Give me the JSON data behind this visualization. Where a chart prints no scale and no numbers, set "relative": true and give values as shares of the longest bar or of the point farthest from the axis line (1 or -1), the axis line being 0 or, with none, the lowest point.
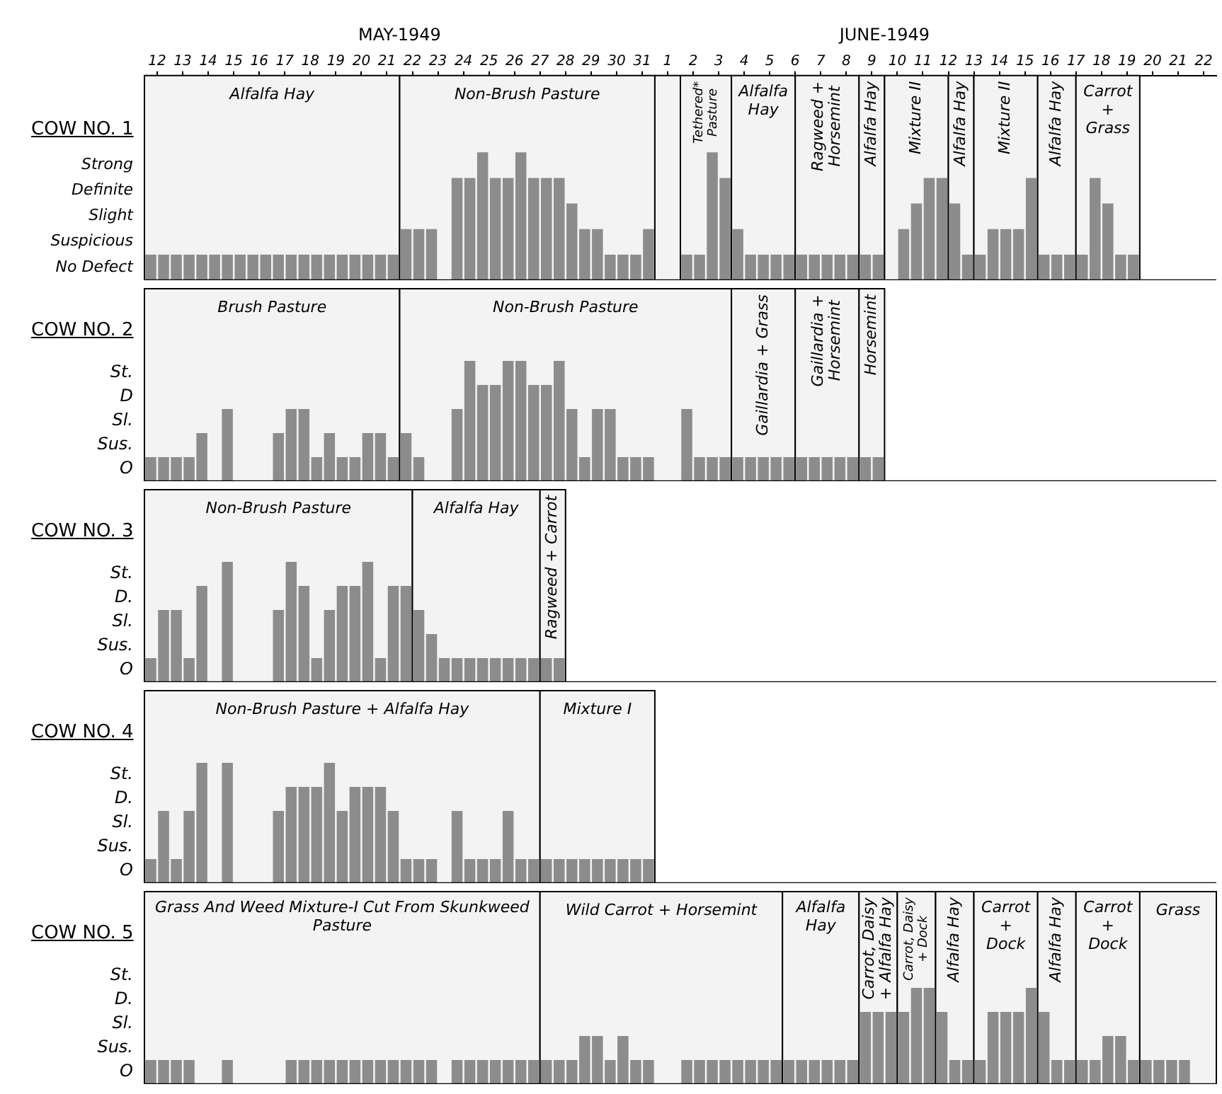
{
  "chart_data": [
    {
      "type": "bar",
      "title": "COW NO. 1",
      "relative": true,
      "color": "#8c8c8c",
      "annotations": [
        "Strong",
        "Definite",
        "Slight",
        "Suspicious",
        "No Defect"
      ],
      "x": [
        "1949-05-12T06:00",
        "1949-05-12T18:00",
        "1949-05-13T06:00",
        "1949-05-13T18:00",
        "1949-05-14T06:00",
        "1949-05-14T18:00",
        "1949-05-15T06:00",
        "1949-05-15T18:00",
        "1949-05-16T06:00",
        "1949-05-16T18:00",
        "1949-05-17T06:00",
        "1949-05-17T18:00",
        "1949-05-18T06:00",
        "1949-05-18T18:00",
        "1949-05-19T06:00",
        "1949-05-19T18:00",
        "1949-05-20T06:00",
        "1949-05-20T18:00",
        "1949-05-21T06:00",
        "1949-05-21T18:00",
        "1949-05-22T06:00",
        "1949-05-22T18:00",
        "1949-05-23T06:00",
        "1949-05-23T18:00",
        "1949-05-24T06:00",
        "1949-05-24T18:00",
        "1949-05-25T06:00",
        "1949-05-25T18:00",
        "1949-05-26T06:00",
        "1949-05-26T18:00",
        "1949-05-27T06:00",
        "1949-05-27T18:00",
        "1949-05-28T06:00",
        "1949-05-28T18:00",
        "1949-05-29T06:00",
        "1949-05-29T18:00",
        "1949-05-30T06:00",
        "1949-05-30T18:00",
        "1949-05-31T06:00",
        "1949-05-31T18:00",
        "1949-06-01T06:00",
        "1949-06-01T18:00",
        "1949-06-02T06:00",
        "1949-06-02T18:00",
        "1949-06-03T06:00",
        "1949-06-03T18:00",
        "1949-06-04T06:00",
        "1949-06-04T18:00",
        "1949-06-05T06:00",
        "1949-06-05T18:00",
        "1949-06-06T06:00",
        "1949-06-06T18:00",
        "1949-06-07T06:00",
        "1949-06-07T18:00",
        "1949-06-08T06:00",
        "1949-06-08T18:00",
        "1949-06-09T06:00",
        "1949-06-09T18:00",
        "1949-06-10T06:00",
        "1949-06-10T18:00",
        "1949-06-11T06:00",
        "1949-06-11T18:00",
        "1949-06-12T06:00",
        "1949-06-12T18:00",
        "1949-06-13T06:00",
        "1949-06-13T18:00",
        "1949-06-14T06:00",
        "1949-06-14T18:00",
        "1949-06-15T06:00",
        "1949-06-15T18:00",
        "1949-06-16T06:00",
        "1949-06-16T18:00",
        "1949-06-17T06:00",
        "1949-06-17T18:00",
        "1949-06-18T06:00",
        "1949-06-18T18:00",
        "1949-06-19T06:00",
        "1949-06-19T18:00"
      ],
      "values": [
        0.2,
        0.2,
        0.2,
        0.2,
        0.2,
        0.2,
        0.2,
        0.2,
        0.2,
        0.2,
        0.2,
        0.2,
        0.2,
        0.2,
        0.2,
        0.2,
        0.2,
        0.2,
        0.2,
        0.2,
        0.4,
        0.4,
        0.4,
        null,
        0.8,
        0.8,
        1,
        0.8,
        0.8,
        1,
        0.8,
        0.8,
        0.8,
        0.6,
        0.4,
        0.4,
        0.2,
        0.2,
        0.2,
        0.4,
        null,
        null,
        0.2,
        0.2,
        1,
        0.8,
        0.4,
        0.2,
        0.2,
        0.2,
        0.2,
        0.2,
        0.2,
        0.2,
        0.2,
        0.2,
        0.2,
        0.2,
        null,
        0.4,
        0.6,
        0.8,
        0.8,
        0.6,
        0.2,
        0.2,
        0.4,
        0.4,
        0.4,
        0.8,
        0.2,
        0.2,
        0.2,
        0.2,
        0.8,
        0.6,
        0.2,
        0.2
      ],
      "xlim": [
        "1949-05-12",
        "1949-06-23"
      ],
      "xticks": [
        {
          "value": "1949-05-12T12:00",
          "label": "12"
        },
        {
          "value": "1949-05-13T12:00",
          "label": "13"
        },
        {
          "value": "1949-05-14T12:00",
          "label": "14"
        },
        {
          "value": "1949-05-15T12:00",
          "label": "15"
        },
        {
          "value": "1949-05-16T12:00",
          "label": "16"
        },
        {
          "value": "1949-05-17T12:00",
          "label": "17"
        },
        {
          "value": "1949-05-18T12:00",
          "label": "18"
        },
        {
          "value": "1949-05-19T12:00",
          "label": "19"
        },
        {
          "value": "1949-05-20T12:00",
          "label": "20"
        },
        {
          "value": "1949-05-21T12:00",
          "label": "21"
        },
        {
          "value": "1949-05-22T12:00",
          "label": "22"
        },
        {
          "value": "1949-05-23T12:00",
          "label": "23"
        },
        {
          "value": "1949-05-24T12:00",
          "label": "24"
        },
        {
          "value": "1949-05-25T12:00",
          "label": "25"
        },
        {
          "value": "1949-05-26T12:00",
          "label": "26"
        },
        {
          "value": "1949-05-27T12:00",
          "label": "27"
        },
        {
          "value": "1949-05-28T12:00",
          "label": "28"
        },
        {
          "value": "1949-05-29T12:00",
          "label": "29"
        },
        {
          "value": "1949-05-30T12:00",
          "label": "30"
        },
        {
          "value": "1949-05-31T12:00",
          "label": "31"
        },
        {
          "value": "1949-06-01T12:00",
          "label": "1"
        },
        {
          "value": "1949-06-02T12:00",
          "label": "2"
        },
        {
          "value": "1949-06-03T12:00",
          "label": "3"
        },
        {
          "value": "1949-06-04T12:00",
          "label": "4"
        },
        {
          "value": "1949-06-05T12:00",
          "label": "5"
        },
        {
          "value": "1949-06-06T12:00",
          "label": "6"
        },
        {
          "value": "1949-06-07T12:00",
          "label": "7"
        },
        {
          "value": "1949-06-08T12:00",
          "label": "8"
        },
        {
          "value": "1949-06-09T12:00",
          "label": "9"
        },
        {
          "value": "1949-06-10T12:00",
          "label": "10"
        },
        {
          "value": "1949-06-11T12:00",
          "label": "11"
        },
        {
          "value": "1949-06-12T12:00",
          "label": "12"
        },
        {
          "value": "1949-06-13T12:00",
          "label": "13"
        },
        {
          "value": "1949-06-14T12:00",
          "label": "14"
        },
        {
          "value": "1949-06-15T12:00",
          "label": "15"
        },
        {
          "value": "1949-06-16T12:00",
          "label": "16"
        },
        {
          "value": "1949-06-17T12:00",
          "label": "17"
        },
        {
          "value": "1949-06-18T12:00",
          "label": "18"
        },
        {
          "value": "1949-06-19T12:00",
          "label": "19"
        },
        {
          "value": "1949-06-20T12:00",
          "label": "20"
        },
        {
          "value": "1949-06-21T12:00",
          "label": "21"
        },
        {
          "value": "1949-06-22T12:00",
          "label": "22"
        }
      ],
      "x2lim": [
        "1949-05-12",
        "1949-06-23"
      ],
      "x2ticks": [
        {
          "value": "1949-05-22",
          "label": "MAY-1949"
        },
        {
          "value": "1949-06-10",
          "label": "JUNE-1949"
        }
      ],
      "bands": [
        {
          "axis": "x",
          "from": "1949-05-12",
          "to": "1949-05-22",
          "label": "Alfalfa Hay",
          "color": "#f3f3f3"
        },
        {
          "axis": "x",
          "from": "1949-05-22",
          "to": "1949-06-01",
          "label": "Non-Brush Pasture",
          "color": "#f3f3f3"
        },
        {
          "axis": "x",
          "from": "1949-06-01",
          "to": "1949-06-02",
          "color": "#f3f3f3"
        },
        {
          "axis": "x",
          "from": "1949-06-02",
          "to": "1949-06-04",
          "label": "Tethered* Pasture",
          "color": "#f3f3f3"
        },
        {
          "axis": "x",
          "from": "1949-06-04",
          "to": "1949-06-06T12:00",
          "label": "Alfalfa Hay",
          "color": "#f3f3f3"
        },
        {
          "axis": "x",
          "from": "1949-06-06T12:00",
          "to": "1949-06-09",
          "label": "Ragweed + Horsemint",
          "color": "#f3f3f3"
        },
        {
          "axis": "x",
          "from": "1949-06-09",
          "to": "1949-06-10",
          "label": "Alfalfa Hay",
          "color": "#f3f3f3"
        },
        {
          "axis": "x",
          "from": "1949-06-10",
          "to": "1949-06-12T12:00",
          "label": "Mixture II",
          "color": "#f3f3f3"
        },
        {
          "axis": "x",
          "from": "1949-06-12T12:00",
          "to": "1949-06-13T12:00",
          "label": "Alfalfa Hay",
          "color": "#f3f3f3"
        },
        {
          "axis": "x",
          "from": "1949-06-13T12:00",
          "to": "1949-06-16",
          "label": "Mixture II",
          "color": "#f3f3f3"
        },
        {
          "axis": "x",
          "from": "1949-06-16",
          "to": "1949-06-17T12:00",
          "label": "Alfalfa Hay",
          "color": "#f3f3f3"
        },
        {
          "axis": "x",
          "from": "1949-06-17T12:00",
          "to": "1949-06-20",
          "label": "Carrot + Grass",
          "color": "#f3f3f3"
        }
      ]
    },
    {
      "type": "bar",
      "title": "COW NO. 2",
      "relative": true,
      "tick_labels": false,
      "color": "#8c8c8c",
      "annotations": [
        "St.",
        "D",
        "Sl.",
        "Sus.",
        "O"
      ],
      "x": [
        "1949-05-12T06:00",
        "1949-05-12T18:00",
        "1949-05-13T06:00",
        "1949-05-13T18:00",
        "1949-05-14T06:00",
        "1949-05-14T18:00",
        "1949-05-15T06:00",
        "1949-05-15T18:00",
        "1949-05-16T06:00",
        "1949-05-16T18:00",
        "1949-05-17T06:00",
        "1949-05-17T18:00",
        "1949-05-18T06:00",
        "1949-05-18T18:00",
        "1949-05-19T06:00",
        "1949-05-19T18:00",
        "1949-05-20T06:00",
        "1949-05-20T18:00",
        "1949-05-21T06:00",
        "1949-05-21T18:00",
        "1949-05-22T06:00",
        "1949-05-22T18:00",
        "1949-05-23T06:00",
        "1949-05-23T18:00",
        "1949-05-24T06:00",
        "1949-05-24T18:00",
        "1949-05-25T06:00",
        "1949-05-25T18:00",
        "1949-05-26T06:00",
        "1949-05-26T18:00",
        "1949-05-27T06:00",
        "1949-05-27T18:00",
        "1949-05-28T06:00",
        "1949-05-28T18:00",
        "1949-05-29T06:00",
        "1949-05-29T18:00",
        "1949-05-30T06:00",
        "1949-05-30T18:00",
        "1949-05-31T06:00",
        "1949-05-31T18:00",
        "1949-06-01T06:00",
        "1949-06-01T18:00",
        "1949-06-02T06:00",
        "1949-06-02T18:00",
        "1949-06-03T06:00",
        "1949-06-03T18:00",
        "1949-06-04T06:00",
        "1949-06-04T18:00",
        "1949-06-05T06:00",
        "1949-06-05T18:00",
        "1949-06-06T06:00",
        "1949-06-06T18:00",
        "1949-06-07T06:00",
        "1949-06-07T18:00",
        "1949-06-08T06:00",
        "1949-06-08T18:00",
        "1949-06-09T06:00",
        "1949-06-09T18:00"
      ],
      "values": [
        0.2,
        0.2,
        0.2,
        0.2,
        0.4,
        null,
        0.6,
        null,
        null,
        null,
        0.4,
        0.6,
        0.6,
        0.2,
        0.4,
        0.2,
        0.2,
        0.4,
        0.4,
        0.2,
        0.4,
        0.2,
        null,
        null,
        0.6,
        1,
        0.8,
        0.8,
        1,
        1,
        0.8,
        0.8,
        1,
        0.6,
        0.2,
        0.6,
        0.6,
        0.2,
        0.2,
        0.2,
        null,
        null,
        0.6,
        0.2,
        0.2,
        0.2,
        0.2,
        0.2,
        0.2,
        0.2,
        0.2,
        0.2,
        0.2,
        0.2,
        0.2,
        0.2,
        0.2,
        0.2
      ],
      "xlim": [
        "1949-05-12",
        "1949-06-23"
      ],
      "bands": [
        {
          "axis": "x",
          "from": "1949-05-12",
          "to": "1949-05-22",
          "label": "Brush Pasture",
          "color": "#f3f3f3"
        },
        {
          "axis": "x",
          "from": "1949-05-22",
          "to": "1949-06-04",
          "label": "Non-Brush Pasture",
          "color": "#f3f3f3"
        },
        {
          "axis": "x",
          "from": "1949-06-04",
          "to": "1949-06-06T12:00",
          "label": "Gaillardia + Grass",
          "color": "#f3f3f3"
        },
        {
          "axis": "x",
          "from": "1949-06-06T12:00",
          "to": "1949-06-09",
          "label": "Gaillardia + Horsemint",
          "color": "#f3f3f3"
        },
        {
          "axis": "x",
          "from": "1949-06-09",
          "to": "1949-06-10",
          "label": "Horsemint",
          "color": "#f3f3f3"
        }
      ]
    },
    {
      "type": "bar",
      "title": "COW NO. 3",
      "relative": true,
      "tick_labels": false,
      "color": "#8c8c8c",
      "annotations": [
        "St.",
        "D.",
        "Sl.",
        "Sus.",
        "O"
      ],
      "x": [
        "1949-05-12T06:00",
        "1949-05-12T18:00",
        "1949-05-13T06:00",
        "1949-05-13T18:00",
        "1949-05-14T06:00",
        "1949-05-14T18:00",
        "1949-05-15T06:00",
        "1949-05-15T18:00",
        "1949-05-16T06:00",
        "1949-05-16T18:00",
        "1949-05-17T06:00",
        "1949-05-17T18:00",
        "1949-05-18T06:00",
        "1949-05-18T18:00",
        "1949-05-19T06:00",
        "1949-05-19T18:00",
        "1949-05-20T06:00",
        "1949-05-20T18:00",
        "1949-05-21T06:00",
        "1949-05-21T18:00",
        "1949-05-22T06:00",
        "1949-05-22T18:00",
        "1949-05-23T06:00",
        "1949-05-23T18:00",
        "1949-05-24T06:00",
        "1949-05-24T18:00",
        "1949-05-25T06:00",
        "1949-05-25T18:00",
        "1949-05-26T06:00",
        "1949-05-26T18:00",
        "1949-05-27T06:00",
        "1949-05-27T18:00",
        "1949-05-28T06:00"
      ],
      "values": [
        0.2,
        0.6,
        0.6,
        0.2,
        0.8,
        null,
        1,
        null,
        null,
        null,
        0.6,
        1,
        0.8,
        0.2,
        0.6,
        0.8,
        0.8,
        1,
        0.2,
        0.8,
        0.8,
        0.6,
        0.4,
        0.2,
        0.2,
        0.2,
        0.2,
        0.2,
        0.2,
        0.2,
        0.2,
        0.2,
        0.2
      ],
      "xlim": [
        "1949-05-12",
        "1949-06-23"
      ],
      "bands": [
        {
          "axis": "x",
          "from": "1949-05-12",
          "to": "1949-05-22T12:00",
          "label": "Non-Brush Pasture",
          "color": "#f3f3f3"
        },
        {
          "axis": "x",
          "from": "1949-05-22T12:00",
          "to": "1949-05-27T12:00",
          "label": "Alfalfa Hay",
          "color": "#f3f3f3"
        },
        {
          "axis": "x",
          "from": "1949-05-27T12:00",
          "to": "1949-05-28T12:00",
          "label": "Ragweed + Carrot",
          "color": "#f3f3f3"
        }
      ]
    },
    {
      "type": "bar",
      "title": "COW NO. 4",
      "relative": true,
      "tick_labels": false,
      "color": "#8c8c8c",
      "annotations": [
        "St.",
        "D.",
        "Sl.",
        "Sus.",
        "O"
      ],
      "x": [
        "1949-05-12T06:00",
        "1949-05-12T18:00",
        "1949-05-13T06:00",
        "1949-05-13T18:00",
        "1949-05-14T06:00",
        "1949-05-14T18:00",
        "1949-05-15T06:00",
        "1949-05-15T18:00",
        "1949-05-16T06:00",
        "1949-05-16T18:00",
        "1949-05-17T06:00",
        "1949-05-17T18:00",
        "1949-05-18T06:00",
        "1949-05-18T18:00",
        "1949-05-19T06:00",
        "1949-05-19T18:00",
        "1949-05-20T06:00",
        "1949-05-20T18:00",
        "1949-05-21T06:00",
        "1949-05-21T18:00",
        "1949-05-22T06:00",
        "1949-05-22T18:00",
        "1949-05-23T06:00",
        "1949-05-23T18:00",
        "1949-05-24T06:00",
        "1949-05-24T18:00",
        "1949-05-25T06:00",
        "1949-05-25T18:00",
        "1949-05-26T06:00",
        "1949-05-26T18:00",
        "1949-05-27T06:00",
        "1949-05-27T18:00",
        "1949-05-28T06:00",
        "1949-05-28T18:00",
        "1949-05-29T06:00",
        "1949-05-29T18:00",
        "1949-05-30T06:00",
        "1949-05-30T18:00",
        "1949-05-31T06:00",
        "1949-05-31T18:00"
      ],
      "values": [
        0.2,
        0.6,
        0.2,
        0.6,
        1,
        null,
        1,
        null,
        null,
        null,
        0.6,
        0.8,
        0.8,
        0.8,
        1,
        0.6,
        0.8,
        0.8,
        0.8,
        0.6,
        0.2,
        0.2,
        0.2,
        null,
        0.6,
        0.2,
        0.2,
        0.2,
        0.6,
        0.2,
        0.2,
        0.2,
        0.2,
        0.2,
        0.2,
        0.2,
        0.2,
        0.2,
        0.2,
        0.2
      ],
      "xlim": [
        "1949-05-12",
        "1949-06-23"
      ],
      "bands": [
        {
          "axis": "x",
          "from": "1949-05-12",
          "to": "1949-05-27T12:00",
          "label": "Non-Brush Pasture + Alfalfa Hay",
          "color": "#f3f3f3"
        },
        {
          "axis": "x",
          "from": "1949-05-27T12:00",
          "to": "1949-06-01",
          "label": "Mixture I",
          "color": "#f3f3f3"
        }
      ]
    },
    {
      "type": "bar",
      "title": "COW NO. 5",
      "relative": true,
      "tick_labels": false,
      "color": "#8c8c8c",
      "annotations": [
        "St.",
        "D.",
        "Sl.",
        "Sus.",
        "O"
      ],
      "x": [
        "1949-05-12T06:00",
        "1949-05-12T18:00",
        "1949-05-13T06:00",
        "1949-05-13T18:00",
        "1949-05-14T06:00",
        "1949-05-14T18:00",
        "1949-05-15T06:00",
        "1949-05-15T18:00",
        "1949-05-16T06:00",
        "1949-05-16T18:00",
        "1949-05-17T06:00",
        "1949-05-17T18:00",
        "1949-05-18T06:00",
        "1949-05-18T18:00",
        "1949-05-19T06:00",
        "1949-05-19T18:00",
        "1949-05-20T06:00",
        "1949-05-20T18:00",
        "1949-05-21T06:00",
        "1949-05-21T18:00",
        "1949-05-22T06:00",
        "1949-05-22T18:00",
        "1949-05-23T06:00",
        "1949-05-23T18:00",
        "1949-05-24T06:00",
        "1949-05-24T18:00",
        "1949-05-25T06:00",
        "1949-05-25T18:00",
        "1949-05-26T06:00",
        "1949-05-26T18:00",
        "1949-05-27T06:00",
        "1949-05-27T18:00",
        "1949-05-28T06:00",
        "1949-05-28T18:00",
        "1949-05-29T06:00",
        "1949-05-29T18:00",
        "1949-05-30T06:00",
        "1949-05-30T18:00",
        "1949-05-31T06:00",
        "1949-05-31T18:00",
        "1949-06-01T06:00",
        "1949-06-01T18:00",
        "1949-06-02T06:00",
        "1949-06-02T18:00",
        "1949-06-03T06:00",
        "1949-06-03T18:00",
        "1949-06-04T06:00",
        "1949-06-04T18:00",
        "1949-06-05T06:00",
        "1949-06-05T18:00",
        "1949-06-06T06:00",
        "1949-06-06T18:00",
        "1949-06-07T06:00",
        "1949-06-07T18:00",
        "1949-06-08T06:00",
        "1949-06-08T18:00",
        "1949-06-09T06:00",
        "1949-06-09T18:00",
        "1949-06-10T06:00",
        "1949-06-10T18:00",
        "1949-06-11T06:00",
        "1949-06-11T18:00",
        "1949-06-12T06:00",
        "1949-06-12T18:00",
        "1949-06-13T06:00",
        "1949-06-13T18:00",
        "1949-06-14T06:00",
        "1949-06-14T18:00",
        "1949-06-15T06:00",
        "1949-06-15T18:00",
        "1949-06-16T06:00",
        "1949-06-16T18:00",
        "1949-06-17T06:00",
        "1949-06-17T18:00",
        "1949-06-18T06:00",
        "1949-06-18T18:00",
        "1949-06-19T06:00",
        "1949-06-19T18:00",
        "1949-06-20T06:00",
        "1949-06-20T18:00",
        "1949-06-21T06:00",
        "1949-06-21T18:00"
      ],
      "values": [
        0.25,
        0.25,
        0.25,
        0.25,
        null,
        null,
        0.25,
        null,
        null,
        null,
        null,
        0.25,
        0.25,
        0.25,
        0.25,
        0.25,
        0.25,
        0.25,
        0.25,
        0.25,
        0.25,
        0.25,
        0.25,
        null,
        0.25,
        0.25,
        0.25,
        0.25,
        0.25,
        0.25,
        0.25,
        0.25,
        0.25,
        0.25,
        0.5,
        0.5,
        0.25,
        0.5,
        0.25,
        0.25,
        null,
        null,
        0.25,
        0.25,
        0.25,
        0.25,
        0.25,
        0.25,
        0.25,
        0.25,
        0.25,
        0.25,
        0.25,
        0.25,
        0.25,
        0.25,
        0.75,
        0.75,
        0.75,
        0.75,
        1,
        1,
        0.75,
        0.25,
        0.25,
        0.25,
        0.75,
        0.75,
        0.75,
        1,
        0.75,
        0.25,
        0.25,
        0.25,
        0.25,
        0.5,
        0.5,
        0.25,
        0.25,
        0.25,
        0.25,
        0.25
      ],
      "xlim": [
        "1949-05-12",
        "1949-06-23"
      ],
      "bands": [
        {
          "axis": "x",
          "from": "1949-05-12",
          "to": "1949-05-27T12:00",
          "label": "Grass And Weed Mixture-I Cut From Skunkweed Pasture",
          "color": "#f3f3f3"
        },
        {
          "axis": "x",
          "from": "1949-05-27T12:00",
          "to": "1949-06-06",
          "label": "Wild Carrot + Horsemint",
          "color": "#f3f3f3"
        },
        {
          "axis": "x",
          "from": "1949-06-06",
          "to": "1949-06-09",
          "label": "Alfalfa Hay",
          "color": "#f3f3f3"
        },
        {
          "axis": "x",
          "from": "1949-06-09",
          "to": "1949-06-10T12:00",
          "label": "Carrot, Daisy + Alfalfa Hay",
          "color": "#f3f3f3"
        },
        {
          "axis": "x",
          "from": "1949-06-10T12:00",
          "to": "1949-06-12",
          "label": "Carrot, Daisy + Dock",
          "color": "#f3f3f3"
        },
        {
          "axis": "x",
          "from": "1949-06-12",
          "to": "1949-06-13T12:00",
          "label": "Alfalfa Hay",
          "color": "#f3f3f3"
        },
        {
          "axis": "x",
          "from": "1949-06-13T12:00",
          "to": "1949-06-16",
          "label": "Carrot + Dock",
          "color": "#f3f3f3"
        },
        {
          "axis": "x",
          "from": "1949-06-16",
          "to": "1949-06-17T12:00",
          "label": "Alfalfa Hay",
          "color": "#f3f3f3"
        },
        {
          "axis": "x",
          "from": "1949-06-17T12:00",
          "to": "1949-06-20",
          "label": "Carrot + Dock",
          "color": "#f3f3f3"
        },
        {
          "axis": "x",
          "from": "1949-06-20",
          "to": "1949-06-23",
          "label": "Grass",
          "color": "#f3f3f3"
        }
      ]
    }
  ]
}
